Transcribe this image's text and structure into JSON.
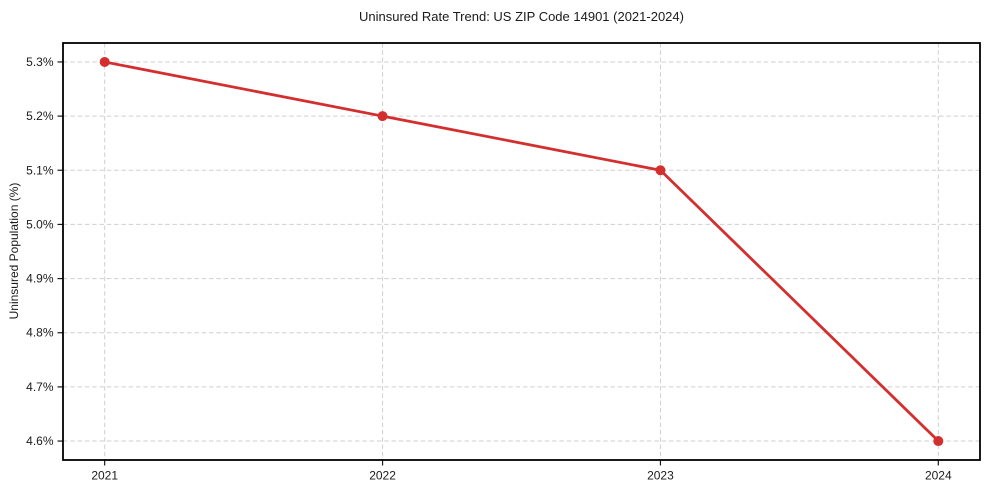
{
  "chart_data": {
    "type": "line",
    "title": "Uninsured Rate Trend: US ZIP Code 14901 (2021-2024)",
    "xlabel": "",
    "ylabel": "Uninsured Population (%)",
    "x": [
      2021,
      2022,
      2023,
      2024
    ],
    "values": [
      5.3,
      5.2,
      5.1,
      4.6
    ],
    "xtick_values": [
      2021,
      2022,
      2023,
      2024
    ],
    "xtick_labels": [
      "2021",
      "2022",
      "2023",
      "2024"
    ],
    "ytick_values": [
      4.6,
      4.7,
      4.8,
      4.9,
      5.0,
      5.1,
      5.2,
      5.3
    ],
    "ytick_labels": [
      "4.6%",
      "4.7%",
      "4.8%",
      "4.9%",
      "5.0%",
      "5.1%",
      "5.2%",
      "5.3%"
    ],
    "xlim": [
      2020.85,
      2024.15
    ],
    "ylim": [
      4.565,
      5.335
    ],
    "grid": true,
    "grid_style": "dashed",
    "legend_position": "none",
    "colors": {
      "line": "#d32f2f",
      "marker": "#d32f2f",
      "grid": "#cfcfcf",
      "spine": "#000000",
      "tick": "#1a1a1a",
      "text": "#1a1a1a",
      "background": "#ffffff"
    }
  }
}
